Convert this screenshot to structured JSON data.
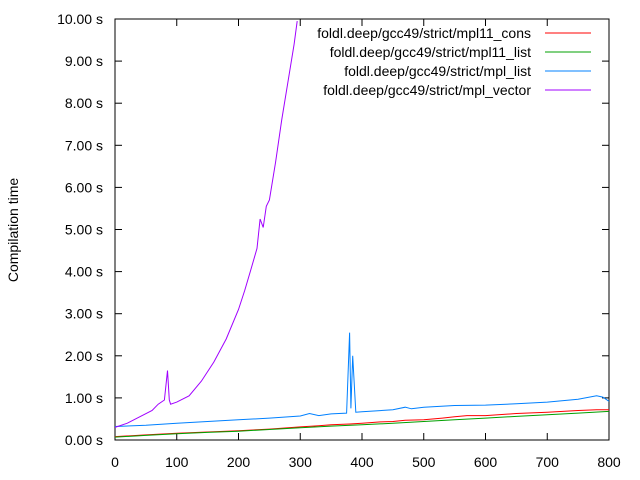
{
  "chart_data": {
    "type": "line",
    "title": "",
    "xlabel": "",
    "ylabel": "Compilation time",
    "xlim": [
      0,
      800
    ],
    "ylim": [
      0,
      10
    ],
    "grid": false,
    "legend_position": "top-right",
    "x_ticks": [
      "0",
      "100",
      "200",
      "300",
      "400",
      "500",
      "600",
      "700",
      "800"
    ],
    "y_ticks": [
      "0.00 s",
      "1.00 s",
      "2.00 s",
      "3.00 s",
      "4.00 s",
      "5.00 s",
      "6.00 s",
      "7.00 s",
      "8.00 s",
      "9.00 s",
      "10.00 s"
    ],
    "series": [
      {
        "name": "foldl.deep/gcc49/strict/mpl11_cons",
        "color": "#ff0000",
        "x": [
          0,
          50,
          100,
          150,
          200,
          250,
          300,
          330,
          350,
          380,
          400,
          430,
          450,
          470,
          500,
          530,
          550,
          570,
          600,
          650,
          700,
          750,
          780,
          800
        ],
        "y": [
          0.08,
          0.12,
          0.16,
          0.19,
          0.22,
          0.26,
          0.31,
          0.34,
          0.36,
          0.38,
          0.4,
          0.43,
          0.44,
          0.47,
          0.48,
          0.52,
          0.55,
          0.58,
          0.58,
          0.63,
          0.66,
          0.7,
          0.72,
          0.72
        ]
      },
      {
        "name": "foldl.deep/gcc49/strict/mpl11_list",
        "color": "#00a000",
        "x": [
          0,
          50,
          100,
          150,
          200,
          250,
          300,
          350,
          400,
          450,
          500,
          550,
          600,
          650,
          700,
          750,
          800
        ],
        "y": [
          0.07,
          0.11,
          0.15,
          0.18,
          0.21,
          0.25,
          0.29,
          0.33,
          0.36,
          0.4,
          0.44,
          0.48,
          0.52,
          0.56,
          0.6,
          0.64,
          0.68
        ]
      },
      {
        "name": "foldl.deep/gcc49/strict/mpl_list",
        "color": "#0080ff",
        "x": [
          0,
          50,
          100,
          150,
          200,
          250,
          300,
          315,
          330,
          350,
          375,
          380,
          382,
          385,
          390,
          400,
          450,
          470,
          480,
          500,
          550,
          600,
          650,
          700,
          750,
          780,
          790,
          800
        ],
        "y": [
          0.32,
          0.35,
          0.4,
          0.44,
          0.48,
          0.52,
          0.57,
          0.63,
          0.58,
          0.62,
          0.64,
          2.55,
          0.75,
          2.0,
          0.66,
          0.67,
          0.72,
          0.78,
          0.74,
          0.78,
          0.82,
          0.83,
          0.86,
          0.9,
          0.97,
          1.05,
          1.02,
          0.92
        ]
      },
      {
        "name": "foldl.deep/gcc49/strict/mpl_vector",
        "color": "#a000ff",
        "x": [
          0,
          20,
          40,
          60,
          70,
          80,
          85,
          88,
          90,
          100,
          120,
          140,
          160,
          180,
          200,
          210,
          220,
          230,
          235,
          240,
          245,
          250,
          260,
          270,
          280,
          290,
          295
        ],
        "y": [
          0.3,
          0.4,
          0.55,
          0.7,
          0.85,
          0.95,
          1.65,
          0.95,
          0.85,
          0.9,
          1.05,
          1.4,
          1.85,
          2.4,
          3.1,
          3.55,
          4.05,
          4.55,
          5.25,
          5.05,
          5.55,
          5.7,
          6.6,
          7.6,
          8.5,
          9.4,
          9.95
        ]
      }
    ]
  }
}
